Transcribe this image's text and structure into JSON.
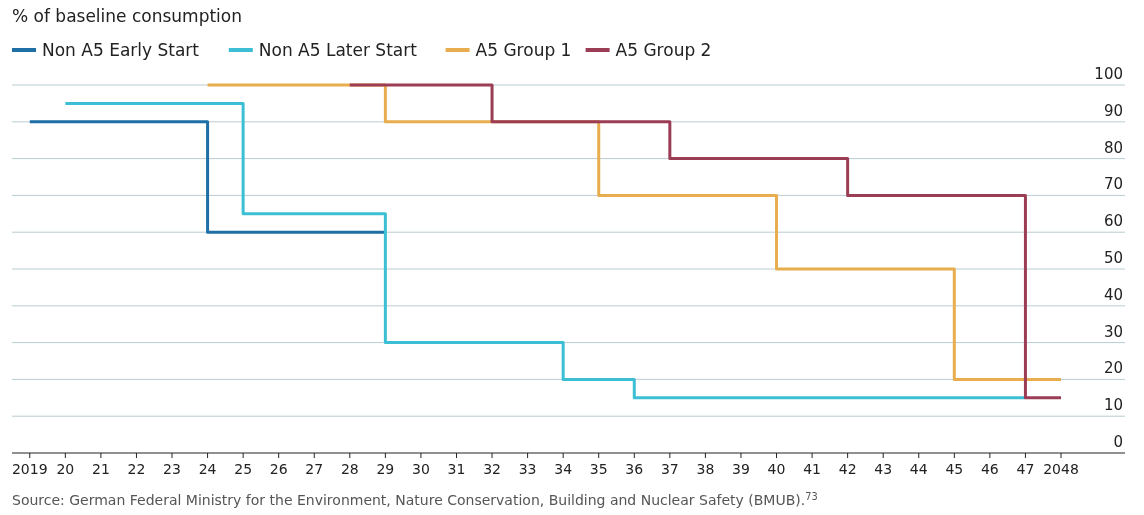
{
  "chart_data": {
    "type": "step",
    "ylabel": "% of baseline consumption",
    "xlim": [
      2018.5,
      2049.8
    ],
    "ylim": [
      0,
      100
    ],
    "xticks": [
      2019,
      {
        "value": 2020,
        "label": "20"
      },
      {
        "value": 2021,
        "label": "21"
      },
      {
        "value": 2022,
        "label": "22"
      },
      {
        "value": 2023,
        "label": "23"
      },
      {
        "value": 2024,
        "label": "24"
      },
      {
        "value": 2025,
        "label": "25"
      },
      {
        "value": 2026,
        "label": "26"
      },
      {
        "value": 2027,
        "label": "27"
      },
      {
        "value": 2028,
        "label": "28"
      },
      {
        "value": 2029,
        "label": "29"
      },
      {
        "value": 2030,
        "label": "30"
      },
      {
        "value": 2031,
        "label": "31"
      },
      {
        "value": 2032,
        "label": "32"
      },
      {
        "value": 2033,
        "label": "33"
      },
      {
        "value": 2034,
        "label": "34"
      },
      {
        "value": 2035,
        "label": "35"
      },
      {
        "value": 2036,
        "label": "36"
      },
      {
        "value": 2037,
        "label": "37"
      },
      {
        "value": 2038,
        "label": "38"
      },
      {
        "value": 2039,
        "label": "39"
      },
      {
        "value": 2040,
        "label": "40"
      },
      {
        "value": 2041,
        "label": "41"
      },
      {
        "value": 2042,
        "label": "42"
      },
      {
        "value": 2043,
        "label": "43"
      },
      {
        "value": 2044,
        "label": "44"
      },
      {
        "value": 2045,
        "label": "45"
      },
      {
        "value": 2046,
        "label": "46"
      },
      {
        "value": 2047,
        "label": "47"
      },
      2048
    ],
    "yticks": [
      0,
      10,
      20,
      30,
      40,
      50,
      60,
      70,
      80,
      90,
      100
    ],
    "grid": "y",
    "legend": "top left",
    "line_style": "solid",
    "series": [
      {
        "name": "Non A5 Early Start",
        "color": "#1d6fa5",
        "x": [
          2019,
          2024,
          2029
        ],
        "values": [
          90,
          60,
          60
        ]
      },
      {
        "name": "Non A5 Later Start",
        "color": "#3cbfd4",
        "x": [
          2020,
          2025,
          2029,
          2034,
          2036,
          2047
        ],
        "values": [
          95,
          65,
          30,
          20,
          15,
          15
        ]
      },
      {
        "name": "A5 Group 1",
        "color": "#e8ad4f",
        "x": [
          2024,
          2029,
          2035,
          2040,
          2045,
          2048
        ],
        "values": [
          100,
          90,
          70,
          50,
          20,
          20
        ]
      },
      {
        "name": "A5 Group 2",
        "color": "#9b3d55",
        "x": [
          2028,
          2032,
          2037,
          2042,
          2047,
          2048
        ],
        "values": [
          100,
          90,
          80,
          70,
          15,
          15
        ]
      }
    ],
    "annotations": [
      "Source: German Federal Ministry for the Environment, Nature Conservation, Building and Nuclear Safety (BMUB).$^{73}$"
    ]
  }
}
